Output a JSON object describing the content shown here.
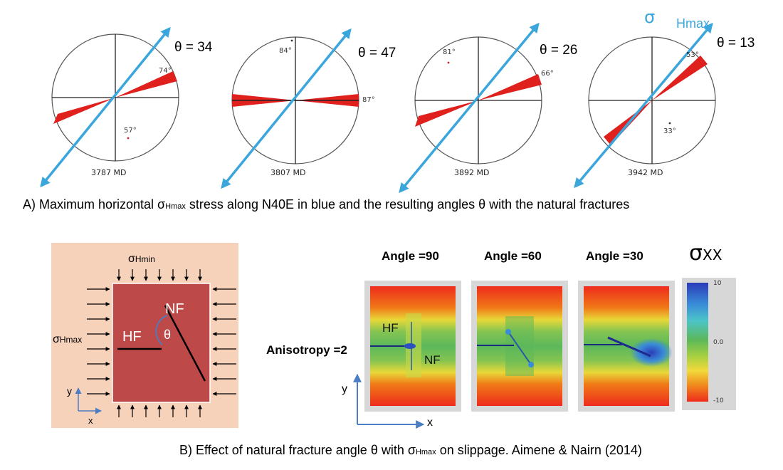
{
  "part_a": {
    "sigma_label": "σ",
    "sigma_sub": "Hmax",
    "plots": [
      {
        "md": "3787 MD",
        "theta": "θ = 34",
        "labels": [
          "74°",
          "57°"
        ]
      },
      {
        "md": "3807 MD",
        "theta": "θ = 47",
        "labels": [
          "84°",
          "87°"
        ]
      },
      {
        "md": "3892 MD",
        "theta": "θ = 26",
        "labels": [
          "81°",
          "66°"
        ]
      },
      {
        "md": "3942 MD",
        "theta": "θ = 13",
        "labels": [
          "53°",
          "33°"
        ]
      }
    ],
    "caption_pre": "A)   Maximum horizontal σ",
    "caption_sub": "Hmax",
    "caption_post": " stress along  N40E in blue and the resulting angles θ  with the natural fractures"
  },
  "part_b": {
    "box": {
      "sigma_hmin": "σ",
      "sigma_hmin_sub": "Hmin",
      "sigma_hmax": "σ",
      "sigma_hmax_sub": "Hmax",
      "nf": "NF",
      "hf": "HF",
      "theta": "θ",
      "axis_y": "y",
      "axis_x": "x"
    },
    "panels": [
      {
        "title": "Angle =90"
      },
      {
        "title": "Angle =60"
      },
      {
        "title": "Angle =30"
      }
    ],
    "panel_hf": "HF",
    "panel_nf": "NF",
    "anisotropy": "Anisotropy =2",
    "colorbar_symbol": "σ",
    "colorbar_sub": "XX",
    "colorbar_ticks": [
      "10",
      "0.0",
      "-10"
    ],
    "axis_y": "y",
    "axis_x": "x",
    "caption_pre": "B) Effect of natural fracture angle θ  with  σ",
    "caption_sub": "Hmax",
    "caption_post": "  on slippage. Aimene & Nairn  (2014)"
  },
  "colors": {
    "stress_arrow": "#3aa6dc",
    "fracture": "#e0201c",
    "box_bg": "#f7d2bb",
    "box_rock": "#bd4a48"
  }
}
